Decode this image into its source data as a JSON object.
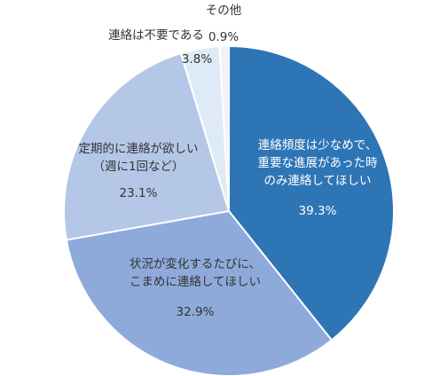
{
  "chart_data": {
    "type": "pie",
    "title": "",
    "start": "top",
    "direction": "clockwise",
    "slices": [
      {
        "label_lines": [
          "連絡頻度は少なめで、",
          "重要な進展があった時",
          "のみ連絡してほしい"
        ],
        "value": 39.3,
        "value_label": "39.3%",
        "color": "#2e75b6",
        "text_color": "#ffffff"
      },
      {
        "label_lines": [
          "状況が変化するたびに、",
          "こまめに連絡してほしい"
        ],
        "value": 32.9,
        "value_label": "32.9%",
        "color": "#8eaadb",
        "text_color": "#333333"
      },
      {
        "label_lines": [
          "定期的に連絡が欲しい",
          "（週に1回など）"
        ],
        "value": 23.1,
        "value_label": "23.1%",
        "color": "#b4c7e7",
        "text_color": "#333333"
      },
      {
        "label_lines": [
          "連絡は不要である"
        ],
        "value": 3.8,
        "value_label": "3.8%",
        "color": "#deebf7",
        "text_color": "#333333"
      },
      {
        "label_lines": [
          "その他"
        ],
        "value": 0.9,
        "value_label": "0.9%",
        "color": "#eef3fa",
        "text_color": "#333333"
      }
    ]
  }
}
